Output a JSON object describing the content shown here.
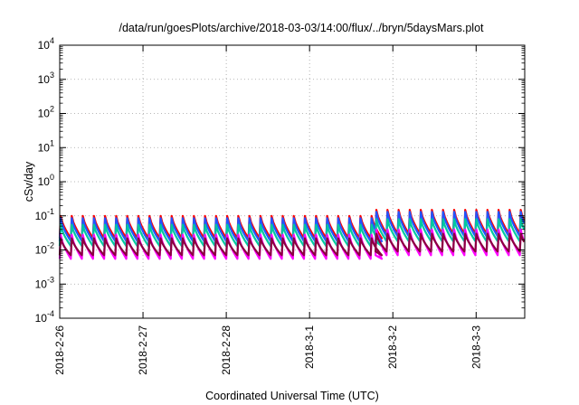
{
  "chart_data": {
    "type": "line",
    "title": "/data/run/goesPlots/archive/2018-03-03/14:00/flux/../bryn/5daysMars.plot",
    "xlabel": "Coordinated Universal Time (UTC)",
    "ylabel": "cSv/day",
    "yscale": "log",
    "ylim": [
      0.0001,
      10000
    ],
    "xlim": [
      "2018-02-26T00:00",
      "2018-03-03T14:00"
    ],
    "grid": true,
    "y_ticks": [
      {
        "base": "10",
        "exp": "4"
      },
      {
        "base": "10",
        "exp": "3"
      },
      {
        "base": "10",
        "exp": "2"
      },
      {
        "base": "10",
        "exp": "1"
      },
      {
        "base": "10",
        "exp": "0"
      },
      {
        "base": "10",
        "exp": "-1"
      },
      {
        "base": "10",
        "exp": "-2"
      },
      {
        "base": "10",
        "exp": "-3"
      },
      {
        "base": "10",
        "exp": "-4"
      }
    ],
    "x_ticks": [
      "2018-2-26",
      "2018-2-27",
      "2018-2-28",
      "2018-3-1",
      "2018-3-2",
      "2018-3-3"
    ],
    "cycle_hours": 3.2,
    "series": [
      {
        "color": "#ff0000",
        "segments": [
          {
            "start": "2018-02-26T00:00",
            "end": "2018-03-01T19:00",
            "peak": 0.1,
            "trough": 0.022
          },
          {
            "start": "2018-03-01T19:00",
            "end": "2018-03-03T14:00",
            "peak": 0.15,
            "trough": 0.03
          }
        ]
      },
      {
        "color": "#2255ff",
        "segments": [
          {
            "start": "2018-02-26T00:00",
            "end": "2018-03-01T19:00",
            "peak": 0.085,
            "trough": 0.018
          },
          {
            "start": "2018-03-01T19:00",
            "end": "2018-03-03T14:00",
            "peak": 0.13,
            "trough": 0.025
          }
        ]
      },
      {
        "color": "#00c8a0",
        "segments": [
          {
            "start": "2018-02-26T00:00",
            "end": "2018-03-01T19:00",
            "peak": 0.055,
            "trough": 0.013
          },
          {
            "start": "2018-03-01T19:00",
            "end": "2018-03-03T14:00",
            "peak": 0.08,
            "trough": 0.018
          }
        ]
      },
      {
        "color": "#ff00ff",
        "segments": [
          {
            "start": "2018-02-26T00:00",
            "end": "2018-03-01T19:00",
            "peak": 0.028,
            "trough": 0.0055
          },
          {
            "start": "2018-03-01T19:00",
            "end": "2018-03-03T14:00",
            "peak": 0.04,
            "trough": 0.007
          }
        ]
      },
      {
        "color": "#8b0040",
        "segments": [
          {
            "start": "2018-02-26T00:00",
            "end": "2018-03-01T19:00",
            "peak": 0.022,
            "trough": 0.007
          },
          {
            "start": "2018-03-01T19:00",
            "end": "2018-03-03T14:00",
            "peak": 0.03,
            "trough": 0.009
          }
        ]
      }
    ]
  }
}
